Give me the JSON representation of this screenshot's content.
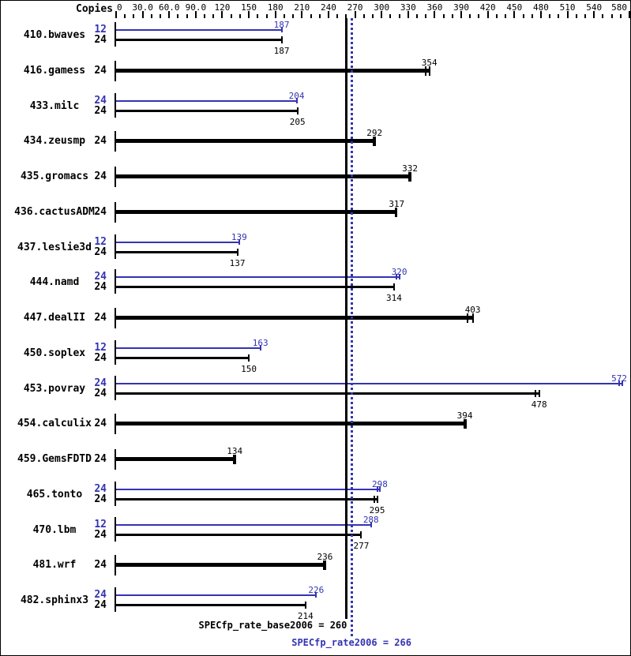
{
  "chart_data": {
    "type": "bar",
    "orientation": "horizontal",
    "title": "",
    "copies_label": "Copies",
    "colors": {
      "peak": "#3333b3",
      "base": "#000000",
      "background": "#ffffff"
    },
    "axis": {
      "min": 0,
      "max": 580,
      "minor_step": 10,
      "major_ticks": [
        {
          "v": 0,
          "label": "0",
          "align": "left"
        },
        {
          "v": 30,
          "label": "30.0"
        },
        {
          "v": 60,
          "label": "60.0"
        },
        {
          "v": 90,
          "label": "90.0"
        },
        {
          "v": 120,
          "label": "120"
        },
        {
          "v": 150,
          "label": "150"
        },
        {
          "v": 180,
          "label": "180"
        },
        {
          "v": 210,
          "label": "210"
        },
        {
          "v": 240,
          "label": "240"
        },
        {
          "v": 270,
          "label": "270"
        },
        {
          "v": 300,
          "label": "300"
        },
        {
          "v": 330,
          "label": "330"
        },
        {
          "v": 360,
          "label": "360"
        },
        {
          "v": 390,
          "label": "390"
        },
        {
          "v": 420,
          "label": "420"
        },
        {
          "v": 450,
          "label": "450"
        },
        {
          "v": 480,
          "label": "480"
        },
        {
          "v": 510,
          "label": "510"
        },
        {
          "v": 540,
          "label": "540"
        },
        {
          "v": 580,
          "label": "580"
        }
      ]
    },
    "reference_lines": [
      {
        "kind": "base",
        "value": 260,
        "style": "solid",
        "label": "SPECfp_rate_base2006 = 260"
      },
      {
        "kind": "peak",
        "value": 266,
        "style": "dotted",
        "label": "SPECfp_rate2006 = 266"
      }
    ],
    "benchmarks": [
      {
        "name": "410.bwaves",
        "bars": [
          {
            "kind": "peak",
            "copies": "12",
            "value": 187,
            "label": "187",
            "ticks": [
              187
            ]
          },
          {
            "kind": "base",
            "copies": "24",
            "value": 187,
            "label": "187",
            "ticks": [
              187
            ]
          }
        ]
      },
      {
        "name": "416.gamess",
        "bars": [
          {
            "kind": "base",
            "copies": "24",
            "value": 354,
            "label": "354",
            "ticks": [
              350,
              354
            ]
          }
        ]
      },
      {
        "name": "433.milc",
        "bars": [
          {
            "kind": "peak",
            "copies": "24",
            "value": 204,
            "label": "204",
            "ticks": [
              204
            ]
          },
          {
            "kind": "base",
            "copies": "24",
            "value": 205,
            "label": "205",
            "ticks": [
              205
            ]
          }
        ]
      },
      {
        "name": "434.zeusmp",
        "bars": [
          {
            "kind": "base",
            "copies": "24",
            "value": 292,
            "label": "292",
            "ticks": [
              292
            ]
          }
        ]
      },
      {
        "name": "435.gromacs",
        "bars": [
          {
            "kind": "base",
            "copies": "24",
            "value": 332,
            "label": "332",
            "ticks": [
              332
            ]
          }
        ]
      },
      {
        "name": "436.cactusADM",
        "bars": [
          {
            "kind": "base",
            "copies": "24",
            "value": 317,
            "label": "317",
            "ticks": [
              315.5,
              317
            ]
          }
        ]
      },
      {
        "name": "437.leslie3d",
        "bars": [
          {
            "kind": "peak",
            "copies": "12",
            "value": 139,
            "label": "139",
            "ticks": [
              139
            ]
          },
          {
            "kind": "base",
            "copies": "24",
            "value": 137,
            "label": "137",
            "ticks": [
              137
            ]
          }
        ]
      },
      {
        "name": "444.namd",
        "bars": [
          {
            "kind": "peak",
            "copies": "24",
            "value": 320,
            "label": "320",
            "ticks": [
              317,
              320
            ]
          },
          {
            "kind": "base",
            "copies": "24",
            "value": 314,
            "label": "314",
            "ticks": [
              314
            ]
          }
        ]
      },
      {
        "name": "447.dealII",
        "bars": [
          {
            "kind": "base",
            "copies": "24",
            "value": 403,
            "label": "403",
            "ticks": [
              397,
              403
            ]
          }
        ]
      },
      {
        "name": "450.soplex",
        "bars": [
          {
            "kind": "peak",
            "copies": "12",
            "value": 163,
            "label": "163",
            "ticks": [
              163
            ]
          },
          {
            "kind": "base",
            "copies": "24",
            "value": 150,
            "label": "150",
            "ticks": [
              150
            ]
          }
        ]
      },
      {
        "name": "453.povray",
        "bars": [
          {
            "kind": "peak",
            "copies": "24",
            "value": 572,
            "label": "572",
            "ticks": [
              568,
              572
            ]
          },
          {
            "kind": "base",
            "copies": "24",
            "value": 478,
            "label": "478",
            "ticks": [
              474,
              478
            ]
          }
        ]
      },
      {
        "name": "454.calculix",
        "bars": [
          {
            "kind": "base",
            "copies": "24",
            "value": 394,
            "label": "394",
            "ticks": [
              394
            ]
          }
        ]
      },
      {
        "name": "459.GemsFDTD",
        "bars": [
          {
            "kind": "base",
            "copies": "24",
            "value": 134,
            "label": "134",
            "ticks": [
              134
            ]
          }
        ]
      },
      {
        "name": "465.tonto",
        "bars": [
          {
            "kind": "peak",
            "copies": "24",
            "value": 298,
            "label": "298",
            "ticks": [
              295,
              298
            ]
          },
          {
            "kind": "base",
            "copies": "24",
            "value": 295,
            "label": "295",
            "ticks": [
              292,
              295
            ]
          }
        ]
      },
      {
        "name": "470.lbm",
        "bars": [
          {
            "kind": "peak",
            "copies": "12",
            "value": 288,
            "label": "288",
            "ticks": [
              288
            ]
          },
          {
            "kind": "base",
            "copies": "24",
            "value": 277,
            "label": "277",
            "ticks": [
              277
            ]
          }
        ]
      },
      {
        "name": "481.wrf",
        "bars": [
          {
            "kind": "base",
            "copies": "24",
            "value": 236,
            "label": "236",
            "ticks": [
              236
            ]
          }
        ]
      },
      {
        "name": "482.sphinx3",
        "bars": [
          {
            "kind": "peak",
            "copies": "24",
            "value": 226,
            "label": "226",
            "ticks": [
              226
            ]
          },
          {
            "kind": "base",
            "copies": "24",
            "value": 214,
            "label": "214",
            "ticks": [
              214
            ]
          }
        ]
      }
    ]
  }
}
